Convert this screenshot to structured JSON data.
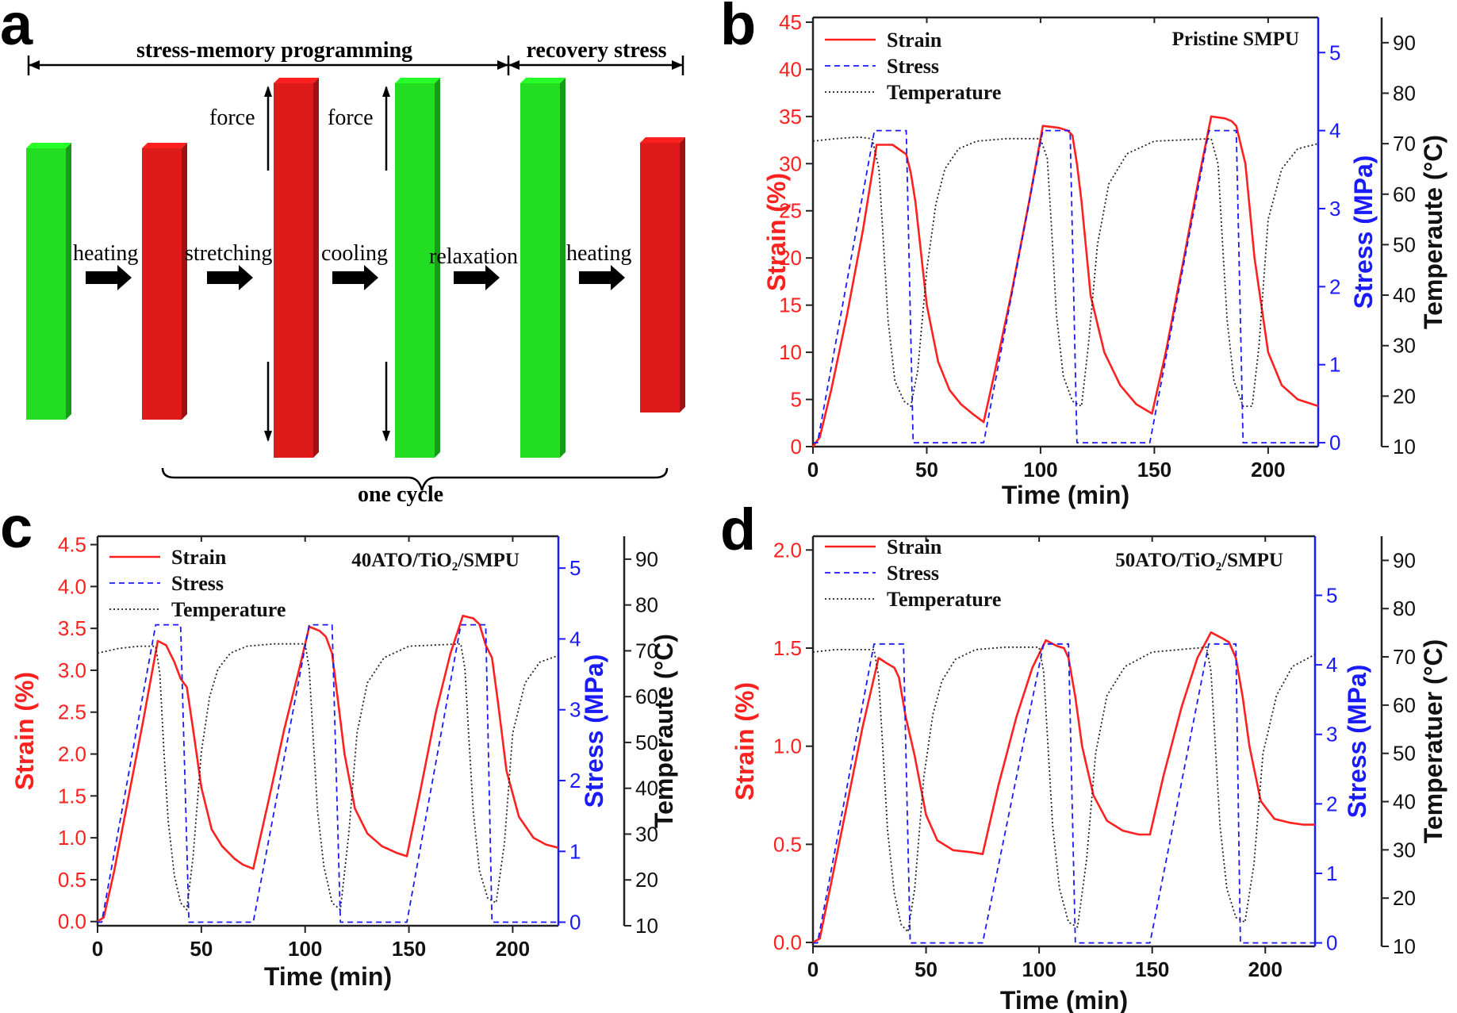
{
  "panel_labels": {
    "a": "a",
    "b": "b",
    "c": "c",
    "d": "d"
  },
  "schematic": {
    "programming_label": "stress-memory programming",
    "recovery_label": "recovery stress",
    "cycle_label": "one  cycle",
    "force_label": "force",
    "steps": [
      "heating",
      "stretching",
      "cooling",
      "relaxation",
      "heating"
    ],
    "colors": {
      "green": "#22dd22",
      "red": "#dd1b1b"
    }
  },
  "chart_data": [
    {
      "id": "b",
      "type": "line",
      "annotation": "Pristine SMPU",
      "xlabel": "Time (min)",
      "xlim": [
        0,
        222
      ],
      "xticks": [
        0,
        50,
        100,
        150,
        200
      ],
      "y_left": {
        "label": "Strain (%)",
        "lim": [
          0,
          45.5
        ],
        "ticks": [
          0,
          5,
          10,
          15,
          20,
          25,
          30,
          35,
          40,
          45
        ],
        "color": "#ff2020"
      },
      "y_right1": {
        "label": "Stress (MPa)",
        "lim": [
          -0.05,
          5.45
        ],
        "ticks": [
          0,
          1,
          2,
          3,
          4,
          5
        ],
        "color": "#1a1aff"
      },
      "y_right2": {
        "label": "Temperaute (°C)",
        "lim": [
          10,
          95
        ],
        "ticks": [
          10,
          20,
          30,
          40,
          50,
          60,
          70,
          80,
          90
        ],
        "color": "#222222"
      },
      "legend": [
        "Strain",
        "Stress",
        "Temperature"
      ],
      "series": [
        {
          "name": "Strain",
          "axis": "left",
          "color": "#ff2020",
          "x": [
            0,
            3,
            8,
            15,
            22,
            28,
            35,
            38,
            41,
            43,
            45,
            50,
            55,
            60,
            65,
            70,
            75,
            80,
            87,
            95,
            101,
            108,
            112,
            114,
            116,
            118,
            122,
            128,
            135,
            142,
            149,
            155,
            163,
            170,
            175,
            181,
            184,
            186,
            188,
            190,
            194,
            200,
            206,
            213,
            222
          ],
          "y": [
            0,
            1,
            6,
            14,
            23,
            32,
            32,
            31.5,
            31,
            29,
            26,
            15,
            9,
            6,
            4.5,
            3.5,
            2.6,
            8,
            16,
            26,
            34,
            33.8,
            33.5,
            33,
            30,
            26,
            16,
            10,
            6.5,
            4.5,
            3.5,
            10,
            20,
            29,
            35,
            34.8,
            34.5,
            34,
            32,
            30,
            20,
            10,
            6.5,
            5,
            4.3
          ]
        },
        {
          "name": "Stress",
          "axis": "right1",
          "color": "#1a1aff",
          "x": [
            0,
            2,
            27,
            41,
            44,
            75,
            101,
            113,
            116,
            148,
            174,
            186,
            189,
            222
          ],
          "y": [
            0,
            0,
            4,
            4,
            0,
            0,
            4,
            4,
            0,
            0,
            4,
            4,
            0,
            0
          ]
        },
        {
          "name": "Temperature",
          "axis": "right2",
          "color": "#222222",
          "x": [
            0,
            10,
            20,
            26,
            29,
            31,
            33,
            36,
            40,
            43,
            46,
            50,
            54,
            58,
            64,
            72,
            85,
            100,
            103,
            105,
            107,
            110,
            114,
            118,
            121,
            125,
            130,
            138,
            150,
            175,
            178,
            180,
            182,
            185,
            189,
            193,
            196,
            200,
            206,
            213,
            222
          ],
          "y": [
            70.5,
            71,
            71.3,
            71,
            65,
            50,
            35,
            23,
            19,
            18,
            25,
            45,
            58,
            65,
            69,
            70.5,
            71,
            71,
            67,
            52,
            36,
            24,
            19,
            18,
            30,
            50,
            62,
            68,
            70.5,
            71,
            66,
            50,
            35,
            23,
            18,
            18,
            30,
            55,
            65,
            69,
            70
          ]
        }
      ]
    },
    {
      "id": "c",
      "type": "line",
      "annotation": "40ATO/TiO₂/SMPU",
      "xlabel": "Time (min)",
      "xlim": [
        0,
        222
      ],
      "xticks": [
        0,
        50,
        100,
        150,
        200
      ],
      "y_left": {
        "label": "Strain (%)",
        "lim": [
          -0.05,
          4.6
        ],
        "ticks": [
          0.0,
          0.5,
          1.0,
          1.5,
          2.0,
          2.5,
          3.0,
          3.5,
          4.0,
          4.5
        ],
        "color": "#ff2020"
      },
      "y_right1": {
        "label": "Stress (MPa)",
        "lim": [
          -0.05,
          5.45
        ],
        "ticks": [
          0,
          1,
          2,
          3,
          4,
          5
        ],
        "color": "#1a1aff"
      },
      "y_right2": {
        "label": "Temperaute (°C)",
        "lim": [
          10,
          95
        ],
        "ticks": [
          10,
          20,
          30,
          40,
          50,
          60,
          70,
          80,
          90
        ],
        "color": "#222222"
      },
      "legend": [
        "Strain",
        "Stress",
        "Temperature"
      ],
      "series": [
        {
          "name": "Strain",
          "axis": "left",
          "color": "#ff2020",
          "x": [
            0,
            3,
            8,
            15,
            22,
            29,
            33,
            37,
            40,
            43,
            46,
            50,
            55,
            60,
            66,
            70,
            75,
            82,
            90,
            97,
            102,
            107,
            110,
            113,
            116,
            119,
            124,
            130,
            137,
            144,
            149,
            155,
            163,
            170,
            176,
            181,
            184,
            187,
            190,
            193,
            197,
            203,
            210,
            216,
            222
          ],
          "y": [
            0,
            0.05,
            0.6,
            1.5,
            2.4,
            3.35,
            3.3,
            3.1,
            2.9,
            2.8,
            2.3,
            1.6,
            1.1,
            0.9,
            0.75,
            0.68,
            0.63,
            1.4,
            2.3,
            3.0,
            3.52,
            3.47,
            3.4,
            3.2,
            2.6,
            2.0,
            1.35,
            1.05,
            0.9,
            0.82,
            0.78,
            1.5,
            2.5,
            3.2,
            3.65,
            3.62,
            3.55,
            3.3,
            3.15,
            2.6,
            1.8,
            1.25,
            1.0,
            0.92,
            0.88
          ]
        },
        {
          "name": "Stress",
          "axis": "right1",
          "color": "#1a1aff",
          "x": [
            0,
            2,
            28,
            40,
            44,
            75,
            102,
            113,
            117,
            149,
            175,
            187,
            190,
            222
          ],
          "y": [
            0,
            0,
            4.2,
            4.2,
            0,
            0,
            4.2,
            4.2,
            0,
            0,
            4.2,
            4.2,
            0,
            0
          ]
        },
        {
          "name": "Temperature",
          "axis": "right2",
          "color": "#222222",
          "x": [
            0,
            10,
            20,
            28,
            30,
            32,
            34,
            37,
            40,
            43,
            46,
            50,
            54,
            58,
            64,
            72,
            85,
            100,
            102,
            104,
            106,
            109,
            113,
            117,
            121,
            125,
            130,
            138,
            150,
            175,
            177,
            179,
            181,
            184,
            188,
            192,
            196,
            200,
            206,
            213,
            222
          ],
          "y": [
            69.5,
            70.5,
            71,
            71,
            65,
            48,
            33,
            21,
            15,
            13.5,
            25,
            48,
            60,
            66,
            69.5,
            71,
            71.5,
            71.5,
            66,
            50,
            35,
            23,
            15,
            13.5,
            30,
            52,
            63,
            68.5,
            71,
            71.5,
            66,
            50,
            35,
            22,
            16,
            15,
            28,
            52,
            63,
            67.5,
            69
          ]
        }
      ]
    },
    {
      "id": "d",
      "type": "line",
      "annotation": "50ATO/TiO₂/SMPU",
      "xlabel": "Time (min)",
      "xlim": [
        0,
        222
      ],
      "xticks": [
        0,
        50,
        100,
        150,
        200
      ],
      "y_left": {
        "label": "Strain (%)",
        "lim": [
          -0.02,
          2.07
        ],
        "ticks": [
          0.0,
          0.5,
          1.0,
          1.5,
          2.0
        ],
        "color": "#ff2020"
      },
      "y_right1": {
        "label": "Stress (MPa)",
        "lim": [
          -0.05,
          5.85
        ],
        "ticks": [
          0,
          1,
          2,
          3,
          4,
          5
        ],
        "color": "#1a1aff"
      },
      "y_right2": {
        "label": "Temperatuer (°C)",
        "lim": [
          10,
          95
        ],
        "ticks": [
          10,
          20,
          30,
          40,
          50,
          60,
          70,
          80,
          90
        ],
        "color": "#222222"
      },
      "legend": [
        "Strain",
        "Stress",
        "Temperature"
      ],
      "series": [
        {
          "name": "Strain",
          "axis": "left",
          "color": "#ff2020",
          "x": [
            0,
            3,
            8,
            15,
            22,
            29,
            33,
            36,
            38,
            41,
            45,
            50,
            55,
            62,
            70,
            75,
            82,
            90,
            97,
            103,
            108,
            111,
            113,
            116,
            119,
            124,
            130,
            137,
            144,
            149,
            155,
            163,
            170,
            176,
            181,
            184,
            187,
            190,
            193,
            198,
            204,
            211,
            217,
            222
          ],
          "y": [
            0,
            0.02,
            0.3,
            0.7,
            1.1,
            1.45,
            1.42,
            1.4,
            1.35,
            1.15,
            0.95,
            0.65,
            0.52,
            0.47,
            0.46,
            0.45,
            0.8,
            1.15,
            1.4,
            1.54,
            1.51,
            1.5,
            1.45,
            1.25,
            1.0,
            0.75,
            0.62,
            0.57,
            0.55,
            0.55,
            0.85,
            1.2,
            1.45,
            1.58,
            1.55,
            1.53,
            1.45,
            1.25,
            1.0,
            0.72,
            0.63,
            0.61,
            0.6,
            0.6
          ]
        },
        {
          "name": "Stress",
          "axis": "right1",
          "color": "#1a1aff",
          "x": [
            0,
            2,
            27,
            40,
            43,
            75,
            102,
            113,
            116,
            149,
            175,
            187,
            189,
            222
          ],
          "y": [
            0,
            0,
            4.3,
            4.3,
            0,
            0,
            4.3,
            4.3,
            0,
            0,
            4.3,
            4.3,
            0,
            0
          ]
        },
        {
          "name": "Temperature",
          "axis": "right2",
          "color": "#222222",
          "x": [
            0,
            10,
            20,
            27,
            29,
            31,
            33,
            36,
            39,
            42,
            45,
            49,
            53,
            57,
            63,
            72,
            85,
            100,
            102,
            104,
            106,
            109,
            113,
            117,
            121,
            125,
            130,
            138,
            150,
            174,
            176,
            178,
            180,
            183,
            187,
            191,
            195,
            199,
            205,
            212,
            222
          ],
          "y": [
            71,
            71.5,
            71.5,
            71.5,
            66,
            50,
            34,
            21,
            14.5,
            13,
            22,
            45,
            58,
            65,
            69.5,
            71.5,
            72,
            72,
            67,
            51,
            35,
            22,
            15,
            14,
            28,
            50,
            62,
            68,
            71,
            72,
            67,
            51,
            35,
            22,
            16,
            15,
            27,
            50,
            62,
            68,
            70.5
          ]
        }
      ]
    }
  ]
}
